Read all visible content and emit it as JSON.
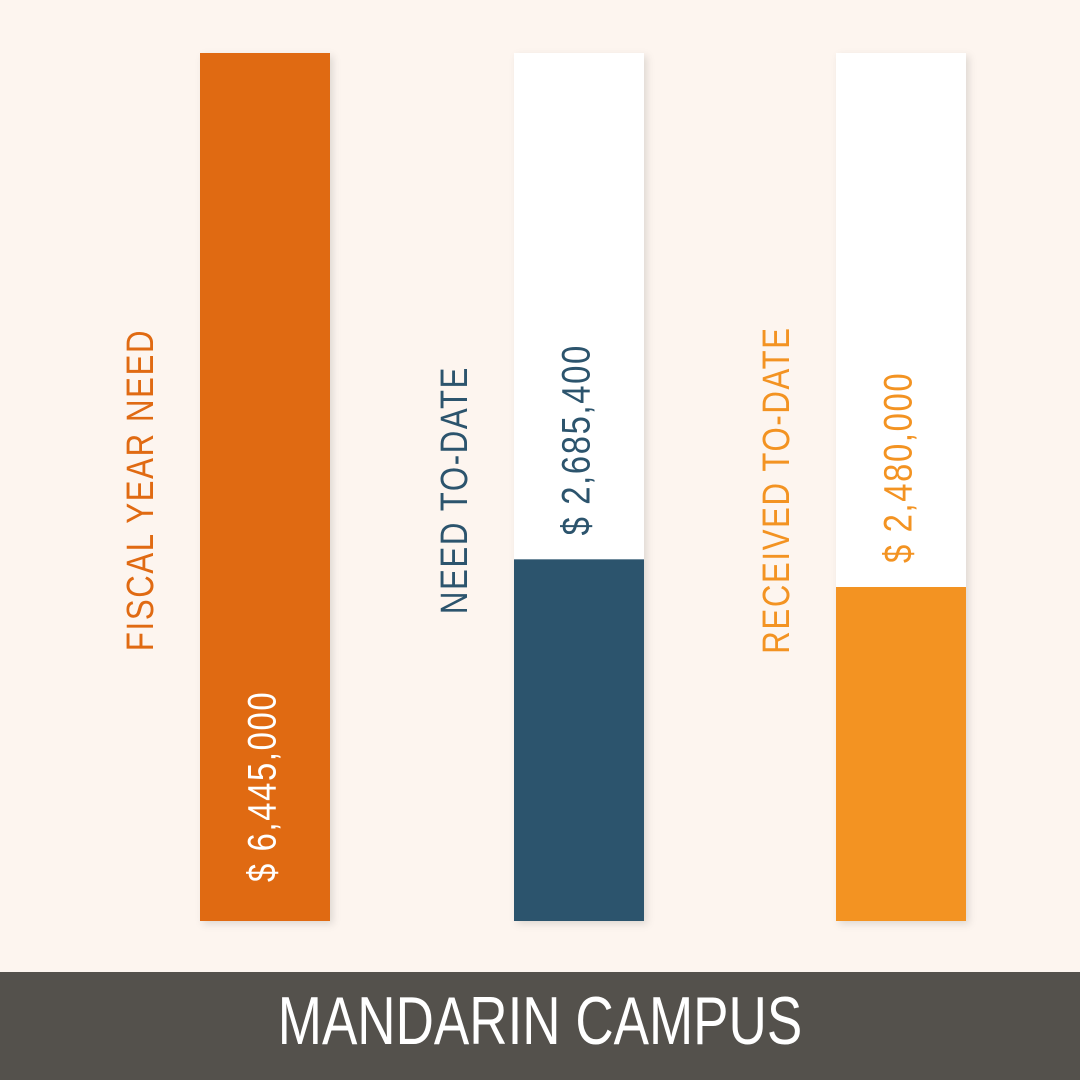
{
  "chart_data": {
    "type": "bar",
    "title": "MANDARIN CAMPUS",
    "categories": [
      "FISCAL YEAR NEED",
      "NEED TO-DATE",
      "RECEIVED TO-DATE"
    ],
    "values": [
      6445000,
      2685400,
      2480000
    ],
    "value_labels": [
      "$ 6,445,000",
      "$ 2,685,400",
      "$ 2,480,000"
    ],
    "colors": [
      "#e06a12",
      "#2c546d",
      "#f39322"
    ]
  }
}
